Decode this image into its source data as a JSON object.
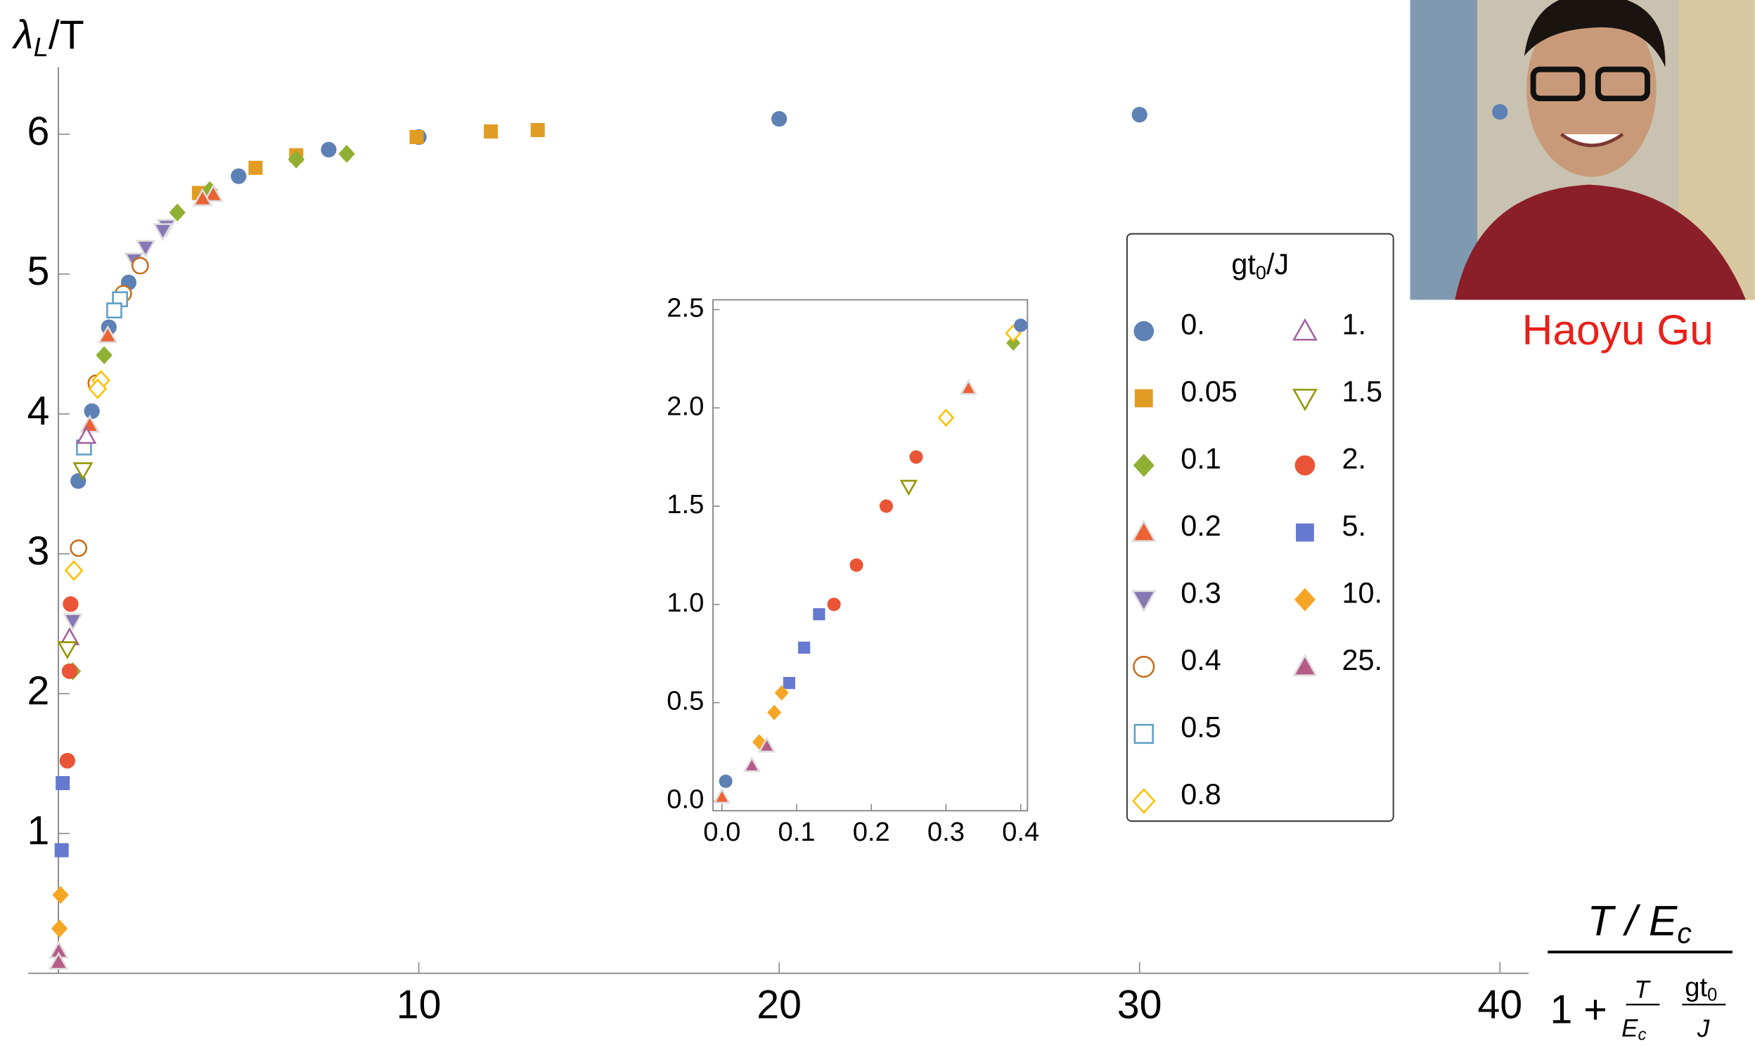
{
  "chart_data": [
    {
      "type": "scatter",
      "y_label_parts": [
        "λ",
        "L",
        "/T"
      ],
      "x_label": {
        "numerator": [
          "T / E",
          "c"
        ],
        "plus": "1 +",
        "frac1": [
          "T",
          "E",
          "c"
        ],
        "frac2": [
          "gt",
          "0",
          "J"
        ]
      },
      "legend_title_parts": [
        "gt",
        "0",
        "/J"
      ],
      "xlim": [
        0,
        40.8
      ],
      "ylim": [
        0,
        6.48
      ],
      "xticks": [
        10,
        20,
        30,
        40
      ],
      "yticks": [
        1,
        2,
        3,
        4,
        5,
        6
      ],
      "series": [
        {
          "name": "0.",
          "color": "#5e81b5",
          "marker": "circle",
          "filled": true,
          "x": [
            40,
            30,
            20,
            10,
            7.5,
            5,
            1.95,
            1.4,
            0.93,
            0.55
          ],
          "values": [
            6.16,
            6.14,
            6.11,
            5.98,
            5.89,
            5.7,
            4.94,
            4.62,
            4.02,
            3.52
          ]
        },
        {
          "name": "0.05",
          "color": "#e19c24",
          "marker": "square",
          "filled": true,
          "x": [
            13.3,
            12,
            9.94,
            6.6,
            5.47,
            3.9
          ],
          "values": [
            6.03,
            6.02,
            5.98,
            5.85,
            5.76,
            5.58
          ]
        },
        {
          "name": "0.1",
          "color": "#8fb032",
          "marker": "diamond",
          "filled": true,
          "x": [
            8,
            6.6,
            4.2,
            3.3,
            1.27,
            0.4
          ],
          "values": [
            5.86,
            5.82,
            5.6,
            5.44,
            4.42,
            2.16
          ]
        },
        {
          "name": "0.2",
          "color": "#eb6235",
          "marker": "triangle",
          "filled": true,
          "x": [
            4.3,
            4,
            1.37,
            0.87
          ],
          "values": [
            5.57,
            5.54,
            4.56,
            3.92
          ]
        },
        {
          "name": "0.3",
          "color": "#8778b3",
          "marker": "triangle-down",
          "filled": true,
          "x": [
            3,
            2.9,
            2.42,
            2.1,
            0.4
          ],
          "values": [
            5.34,
            5.31,
            5.19,
            5.1,
            2.52
          ]
        },
        {
          "name": "0.4",
          "color": "#c56e1a",
          "marker": "circle",
          "filled": false,
          "x": [
            2.27,
            1.8,
            1.05,
            0.56
          ],
          "values": [
            5.06,
            4.86,
            4.22,
            3.04
          ]
        },
        {
          "name": "0.5",
          "color": "#5d9ec7",
          "marker": "square",
          "filled": false,
          "x": [
            1.71,
            1.55,
            0.71
          ],
          "values": [
            4.82,
            4.74,
            3.76
          ]
        },
        {
          "name": "0.8",
          "color": "#ffbf00",
          "marker": "diamond",
          "filled": false,
          "x": [
            1.18,
            1.09,
            0.43
          ],
          "values": [
            4.24,
            4.18,
            2.88
          ]
        },
        {
          "name": "1.",
          "color": "#a5609d",
          "marker": "triangle",
          "filled": false,
          "x": [
            0.78,
            0.31
          ],
          "values": [
            3.84,
            2.4
          ]
        },
        {
          "name": "1.5",
          "color": "#929600",
          "marker": "triangle-down",
          "filled": false,
          "x": [
            0.68,
            0.25
          ],
          "values": [
            3.6,
            2.32
          ]
        },
        {
          "name": "2.",
          "color": "#e95536",
          "marker": "circle",
          "filled": true,
          "x": [
            0.34,
            0.31,
            0.25
          ],
          "values": [
            2.64,
            2.16,
            1.52
          ]
        },
        {
          "name": "5.",
          "color": "#6679d0",
          "marker": "square",
          "filled": true,
          "x": [
            0.12,
            0.09
          ],
          "values": [
            1.36,
            0.88
          ]
        },
        {
          "name": "10.",
          "color": "#f6a625",
          "marker": "diamond",
          "filled": true,
          "x": [
            0.06,
            0.03
          ],
          "values": [
            0.56,
            0.32
          ]
        },
        {
          "name": "25.",
          "color": "#b75b87",
          "marker": "triangle",
          "filled": true,
          "x": [
            0.01,
            0.005
          ],
          "values": [
            0.16,
            0.08
          ]
        }
      ]
    },
    {
      "type": "scatter",
      "xlim": [
        -0.012,
        0.409
      ],
      "ylim": [
        -0.05,
        2.55
      ],
      "xticks": [
        {
          "value": 0,
          "label": "0.0"
        },
        {
          "value": 0.1,
          "label": "0.1"
        },
        {
          "value": 0.2,
          "label": "0.2"
        },
        {
          "value": 0.3,
          "label": "0.3"
        },
        {
          "value": 0.4,
          "label": "0.4"
        }
      ],
      "yticks": [
        {
          "value": 0,
          "label": "0.0"
        },
        {
          "value": 0.5,
          "label": "0.5"
        },
        {
          "value": 1,
          "label": "1.0"
        },
        {
          "value": 1.5,
          "label": "1.5"
        },
        {
          "value": 2,
          "label": "2.0"
        },
        {
          "value": 2.5,
          "label": "2.5"
        }
      ],
      "series": [
        {
          "color": "#e95536",
          "marker": "circle",
          "filled": true,
          "x": [
            0.26,
            0.22,
            0.18,
            0.15
          ],
          "values": [
            1.75,
            1.5,
            1.2,
            1.0
          ]
        },
        {
          "color": "#8fb032",
          "marker": "diamond",
          "filled": true,
          "x": [
            0.39
          ],
          "values": [
            2.33
          ]
        },
        {
          "color": "#ffbf00",
          "marker": "diamond",
          "filled": false,
          "x": [
            0.39,
            0.3
          ],
          "values": [
            2.38,
            1.95
          ]
        },
        {
          "color": "#eb6235",
          "marker": "triangle",
          "filled": true,
          "x": [
            0.33,
            0.0
          ],
          "values": [
            2.1,
            0.02
          ]
        },
        {
          "color": "#929600",
          "marker": "triangle-down",
          "filled": false,
          "x": [
            0.25
          ],
          "values": [
            1.6
          ]
        },
        {
          "color": "#6679d0",
          "marker": "square",
          "filled": true,
          "x": [
            0.13,
            0.11,
            0.09
          ],
          "values": [
            0.95,
            0.78,
            0.6
          ]
        },
        {
          "color": "#f6a625",
          "marker": "diamond",
          "filled": true,
          "x": [
            0.08,
            0.07,
            0.05
          ],
          "values": [
            0.55,
            0.45,
            0.3
          ]
        },
        {
          "color": "#b75b87",
          "marker": "triangle",
          "filled": true,
          "x": [
            0.06,
            0.04
          ],
          "values": [
            0.28,
            0.18
          ]
        },
        {
          "color": "#5e81b5",
          "marker": "circle",
          "filled": true,
          "x": [
            0.4,
            0.005
          ],
          "values": [
            2.42,
            0.1
          ]
        }
      ]
    }
  ],
  "photo": {
    "caption": "Haoyu Gu"
  }
}
